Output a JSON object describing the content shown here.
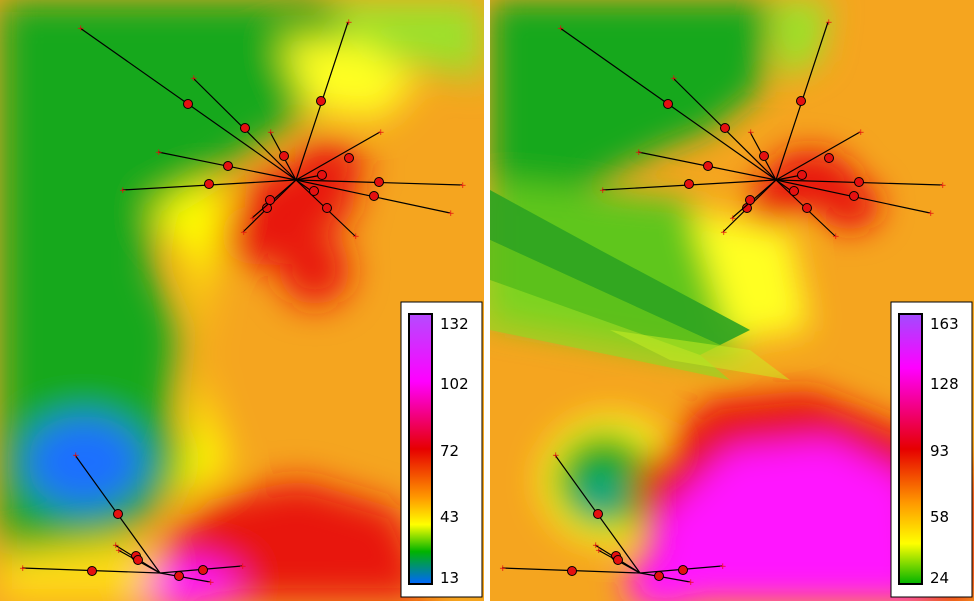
{
  "maps": [
    {
      "id": "left",
      "legend": {
        "labels": [
          "132",
          "102",
          "72",
          "43",
          "13"
        ],
        "colors": [
          "#cc33ff",
          "#ff00ff",
          "#e60000",
          "#ff9900",
          "#ffff00",
          "#00b300",
          "#0066ff"
        ]
      }
    },
    {
      "id": "right",
      "legend": {
        "labels": [
          "163",
          "128",
          "93",
          "58",
          "24"
        ],
        "colors": [
          "#cc44ee",
          "#ff00ff",
          "#e60000",
          "#ff9900",
          "#ffff00",
          "#00b300"
        ]
      }
    }
  ],
  "colors": {
    "green": "#19a81e",
    "light_green": "#7fd81a",
    "yellow": "#ffff00",
    "orange": "#f7a21b",
    "red": "#e8130f",
    "magenta": "#ff16ff",
    "blue": "#1f6fff",
    "marker": "#e51010",
    "line": "#000000"
  }
}
